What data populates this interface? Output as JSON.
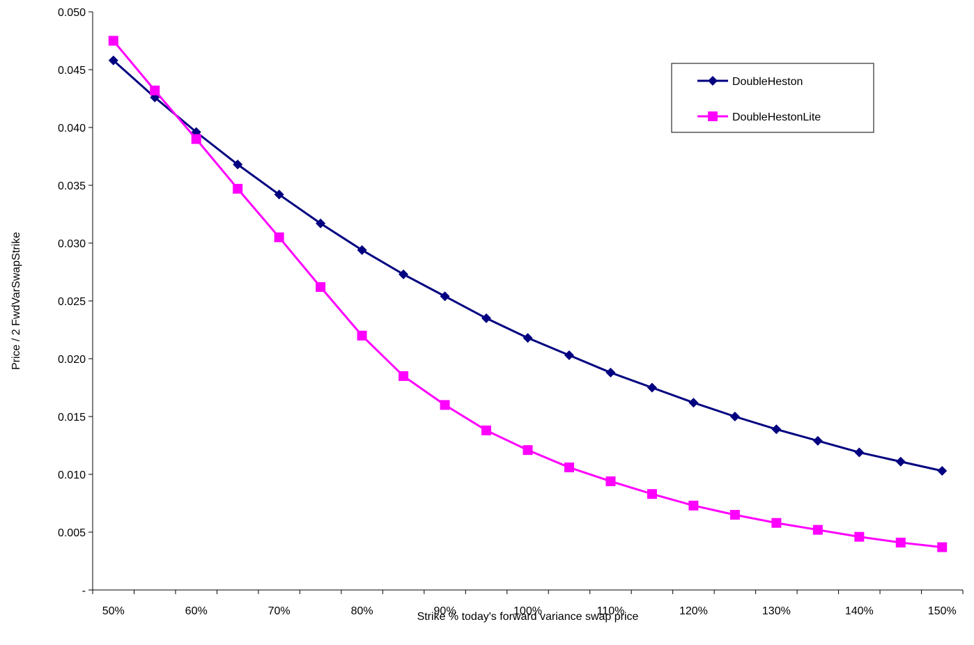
{
  "chart_data": {
    "type": "line",
    "title": "",
    "xlabel": "Strike % today's forward variance swap price",
    "ylabel": "Price / 2 FwdVarSwapStrike",
    "x": [
      50,
      55,
      60,
      65,
      70,
      75,
      80,
      85,
      90,
      95,
      100,
      105,
      110,
      115,
      120,
      125,
      130,
      135,
      140,
      145,
      150
    ],
    "xlim": [
      47.5,
      152.5
    ],
    "x_tick_values": [
      50,
      60,
      70,
      80,
      90,
      100,
      110,
      120,
      130,
      140,
      150
    ],
    "x_tick_labels": [
      "50%",
      "60%",
      "70%",
      "80%",
      "90%",
      "100%",
      "110%",
      "120%",
      "130%",
      "140%",
      "150%"
    ],
    "ylim": [
      0,
      0.05
    ],
    "y_tick_values": [
      0,
      0.005,
      0.01,
      0.015,
      0.02,
      0.025,
      0.03,
      0.035,
      0.04,
      0.045,
      0.05
    ],
    "y_tick_labels": [
      "-",
      "0.005",
      "0.010",
      "0.015",
      "0.020",
      "0.025",
      "0.030",
      "0.035",
      "0.040",
      "0.045",
      "0.050"
    ],
    "grid": false,
    "legend_position": "top-right",
    "series": [
      {
        "name": "DoubleHeston",
        "color": "#000080",
        "marker": "diamond",
        "values": [
          0.0458,
          0.0426,
          0.0396,
          0.0368,
          0.0342,
          0.0317,
          0.0294,
          0.0273,
          0.0254,
          0.0235,
          0.0218,
          0.0203,
          0.0188,
          0.0175,
          0.0162,
          0.015,
          0.0139,
          0.0129,
          0.0119,
          0.0111,
          0.0103
        ]
      },
      {
        "name": "DoubleHestonLite",
        "color": "#FF00FF",
        "marker": "square",
        "values": [
          0.0475,
          0.0432,
          0.039,
          0.0347,
          0.0305,
          0.0262,
          0.022,
          0.0185,
          0.016,
          0.0138,
          0.0121,
          0.0106,
          0.0094,
          0.0083,
          0.0073,
          0.0065,
          0.0058,
          0.0052,
          0.0046,
          0.0041,
          0.0037
        ]
      }
    ]
  }
}
